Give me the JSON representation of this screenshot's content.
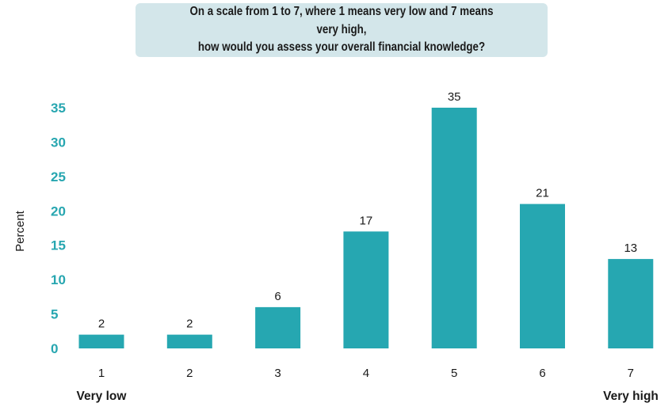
{
  "chart_data": {
    "type": "bar",
    "title": "On a scale from 1 to 7, where 1 means very low and 7 means very high, how would you assess your overall financial knowledge?",
    "title_lines": [
      "On a scale from 1 to 7, where 1 means very low and 7 means very high,",
      "how would you assess your overall financial knowledge?"
    ],
    "categories": [
      "1",
      "2",
      "3",
      "4",
      "5",
      "6",
      "7"
    ],
    "values": [
      2,
      2,
      6,
      17,
      35,
      21,
      13
    ],
    "ylabel": "Percent",
    "xlabel": "",
    "ylim": [
      0,
      35
    ],
    "yticks": [
      0,
      5,
      10,
      15,
      20,
      25,
      30,
      35
    ],
    "low_end_label": "Very low",
    "high_end_label": "Very high",
    "grid": false,
    "bar_color": "#26a7b1",
    "tick_color": "#27a6b0",
    "title_background": "#d3e6ea"
  }
}
